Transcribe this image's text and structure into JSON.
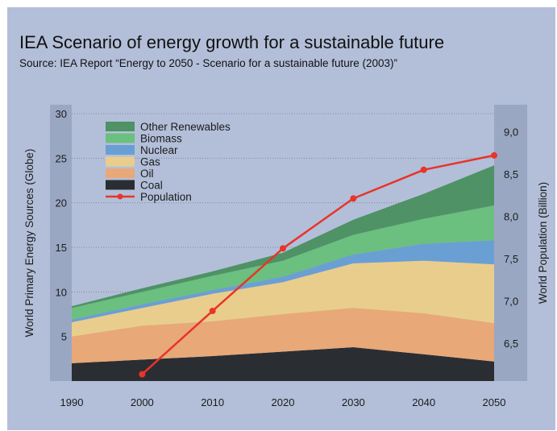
{
  "chart_data": {
    "type": "area",
    "title": "IEA Scenario of energy growth for a sustainable future",
    "subtitle": "Source: IEA Report “Energy to 2050 - Scenario for a sustainable future (2003)”",
    "x": [
      1990,
      2000,
      2010,
      2020,
      2030,
      2040,
      2050
    ],
    "xlim": [
      1990,
      2050
    ],
    "ylabel": "World Primary Energy Sources (Globe)",
    "ylim": [
      0,
      31
    ],
    "yticks": [
      5,
      10,
      15,
      20,
      25,
      30
    ],
    "y2label": "World Population (Billion)",
    "y2lim": [
      6.05,
      9.32
    ],
    "y2ticks": [
      "6,5",
      "7,0",
      "7,5",
      "8,0",
      "8,5",
      "9,0"
    ],
    "y2tick_values": [
      6.5,
      7.0,
      7.5,
      8.0,
      8.5,
      9.0
    ],
    "grid": true,
    "legend_position": "top-left",
    "series": [
      {
        "name": "Coal",
        "color": "#2a2e33",
        "values": [
          2.0,
          2.4,
          2.8,
          3.3,
          3.8,
          3.0,
          2.2
        ]
      },
      {
        "name": "Oil",
        "color": "#e8a878",
        "values": [
          3.0,
          3.8,
          3.9,
          4.2,
          4.4,
          4.6,
          4.3
        ]
      },
      {
        "name": "Gas",
        "color": "#e9cd8c",
        "values": [
          1.6,
          2.0,
          3.1,
          3.6,
          5.0,
          5.9,
          6.6
        ]
      },
      {
        "name": "Nuclear",
        "color": "#6a9fd4",
        "values": [
          0.3,
          0.4,
          0.4,
          0.6,
          1.0,
          1.9,
          2.7
        ]
      },
      {
        "name": "Biomass",
        "color": "#6bbf7f",
        "values": [
          1.3,
          1.4,
          1.6,
          1.8,
          2.2,
          2.8,
          3.9
        ]
      },
      {
        "name": "Other Renewables",
        "color": "#4e9265",
        "values": [
          0.2,
          0.4,
          0.5,
          0.9,
          1.7,
          2.8,
          4.5
        ]
      }
    ],
    "population": {
      "name": "Population",
      "color": "#e8342a",
      "x": [
        2000,
        2010,
        2020,
        2030,
        2040,
        2050
      ],
      "values": [
        6.13,
        6.88,
        7.62,
        8.21,
        8.55,
        8.72
      ]
    },
    "legend_order": [
      "Other Renewables",
      "Biomass",
      "Nuclear",
      "Gas",
      "Oil",
      "Coal",
      "Population"
    ]
  }
}
